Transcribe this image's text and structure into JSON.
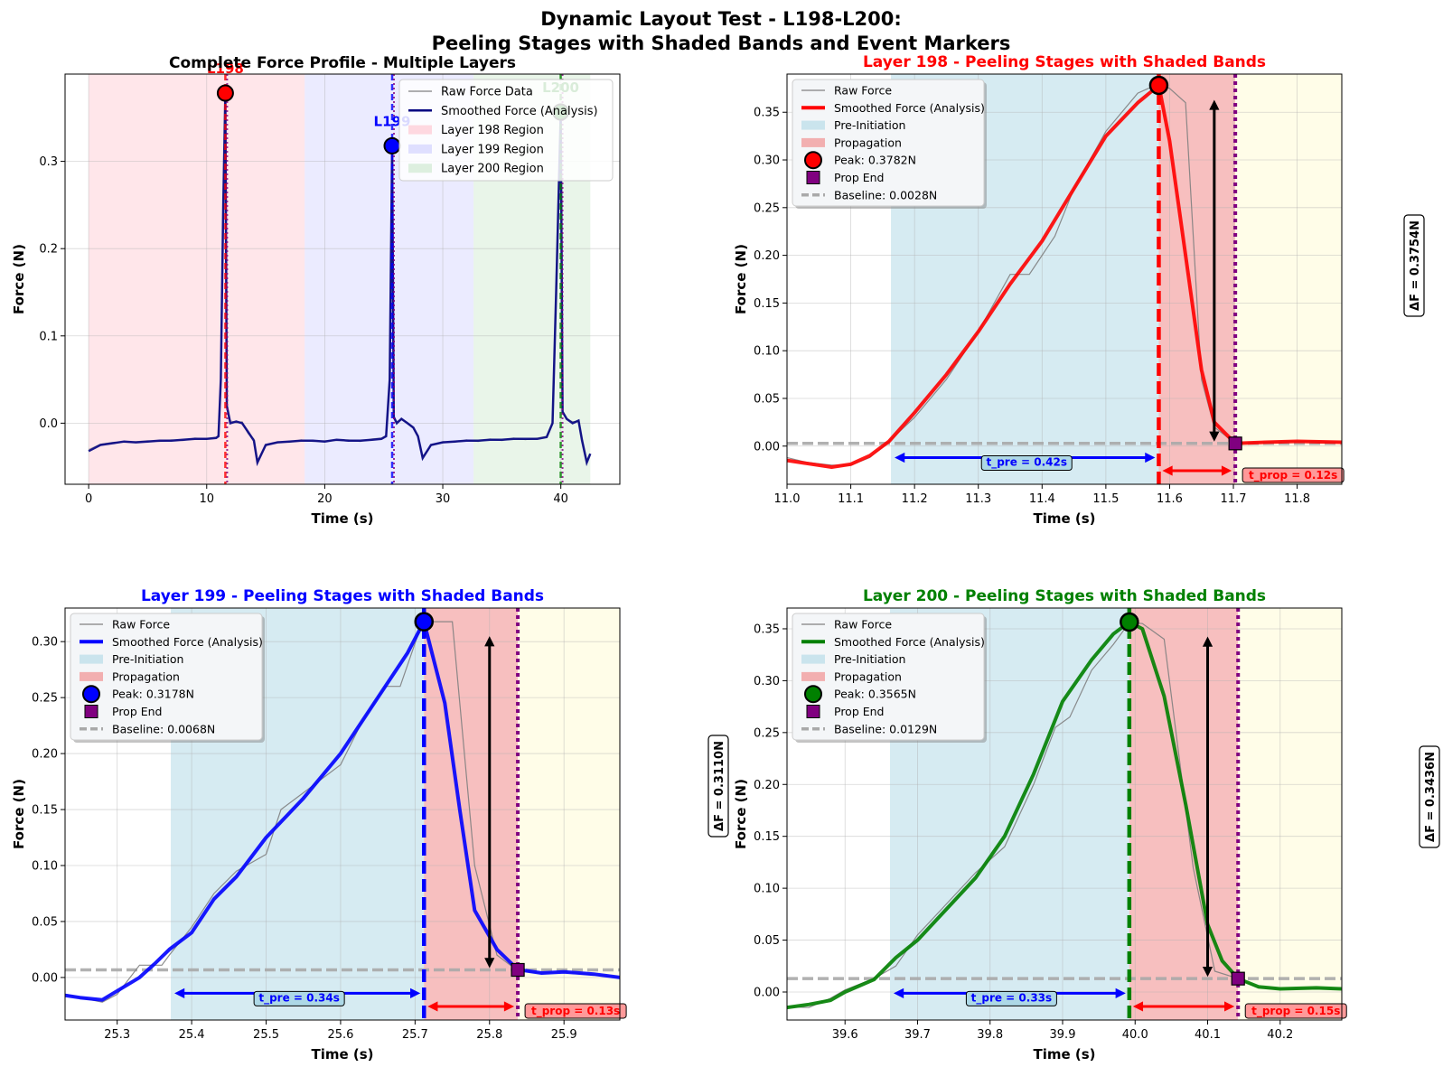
{
  "suptitle": [
    "Dynamic Layout Test - L198-L200:",
    "Peeling Stages with Shaded Bands and Event Markers"
  ],
  "colors": {
    "l198": "#ff0000",
    "l199": "#0000ff",
    "l200": "#008000",
    "raw": "#808080",
    "pre": "#add8e6",
    "prop": "#f08080",
    "post": "#fffde6",
    "purple": "#800080",
    "baseline": "#a9a9a9"
  },
  "chart_data": [
    {
      "type": "line",
      "title": "Complete Force Profile - Multiple Layers",
      "xlabel": "Time (s)",
      "ylabel": "Force (N)",
      "xlim": [
        -2,
        45
      ],
      "ylim": [
        -0.07,
        0.4
      ],
      "xticks": [
        "0",
        "10",
        "20",
        "30",
        "40"
      ],
      "yticks": [
        "0.0",
        "0.1",
        "0.2",
        "0.3"
      ],
      "grid": true,
      "legend_position": "top-right",
      "legend": [
        "Raw Force Data",
        "Smoothed Force (Analysis)",
        "Layer 198 Region",
        "Layer 199 Region",
        "Layer 200 Region"
      ],
      "regions": [
        {
          "name": "Layer 198 Region",
          "x": [
            0,
            18.3
          ]
        },
        {
          "name": "Layer 199 Region",
          "x": [
            18.3,
            32.6
          ]
        },
        {
          "name": "Layer 200 Region",
          "x": [
            32.6,
            42.5
          ]
        }
      ],
      "peaks": [
        {
          "label": "L198",
          "x": 11.58,
          "y": 0.3782
        },
        {
          "label": "L199",
          "x": 25.71,
          "y": 0.3178
        },
        {
          "label": "L200",
          "x": 39.99,
          "y": 0.3565
        }
      ],
      "series": [
        {
          "name": "Smoothed Force (Analysis)",
          "x": [
            0,
            1,
            2,
            3,
            4,
            5,
            6,
            7,
            8,
            9,
            10,
            10.8,
            11.0,
            11.2,
            11.4,
            11.58,
            11.7,
            12,
            12.5,
            13,
            13.5,
            14,
            14.3,
            15,
            16,
            17,
            18,
            19,
            20,
            21,
            22,
            23,
            24,
            24.8,
            25.2,
            25.5,
            25.71,
            25.85,
            26.1,
            26.5,
            27,
            27.5,
            27.9,
            28.3,
            29,
            30,
            31,
            32,
            33,
            34,
            35,
            36,
            37,
            38,
            38.8,
            39.3,
            39.6,
            39.99,
            40.15,
            40.5,
            41,
            41.5,
            41.8,
            42.2,
            42.5
          ],
          "y": [
            -0.032,
            -0.025,
            -0.023,
            -0.021,
            -0.022,
            -0.021,
            -0.02,
            -0.02,
            -0.019,
            -0.018,
            -0.018,
            -0.017,
            -0.015,
            0.05,
            0.25,
            0.3782,
            0.02,
            0.0,
            0.002,
            0.0,
            -0.01,
            -0.02,
            -0.045,
            -0.025,
            -0.022,
            -0.021,
            -0.02,
            -0.02,
            -0.021,
            -0.019,
            -0.02,
            -0.02,
            -0.019,
            -0.018,
            -0.015,
            0.05,
            0.3178,
            0.007,
            0.0,
            0.005,
            0.0,
            -0.005,
            -0.015,
            -0.04,
            -0.025,
            -0.022,
            -0.021,
            -0.02,
            -0.02,
            -0.019,
            -0.019,
            -0.018,
            -0.018,
            -0.018,
            -0.016,
            0.0,
            0.15,
            0.3565,
            0.013,
            0.005,
            0.0,
            0.003,
            -0.02,
            -0.045,
            -0.035
          ]
        },
        {
          "name": "Raw Force Data",
          "x": [
            0,
            1,
            2,
            3,
            4,
            5,
            6,
            7,
            8,
            9,
            10,
            10.8,
            11.0,
            11.2,
            11.4,
            11.58,
            11.7,
            12,
            12.5,
            13,
            13.5,
            14,
            14.3,
            15,
            16,
            17,
            18,
            19,
            20,
            21,
            22,
            23,
            24,
            24.8,
            25.2,
            25.5,
            25.71,
            25.85,
            26.1,
            26.5,
            27,
            27.5,
            27.9,
            28.3,
            29,
            30,
            31,
            32,
            33,
            34,
            35,
            36,
            37,
            38,
            38.8,
            39.3,
            39.6,
            39.99,
            40.15,
            40.5,
            41,
            41.5,
            41.8,
            42.2,
            42.5
          ],
          "y": [
            -0.03,
            -0.024,
            -0.022,
            -0.022,
            -0.021,
            -0.02,
            -0.021,
            -0.019,
            -0.02,
            -0.017,
            -0.018,
            -0.016,
            -0.014,
            0.05,
            0.26,
            0.3782,
            0.02,
            0.003,
            0.0,
            0.002,
            -0.012,
            -0.018,
            -0.043,
            -0.026,
            -0.021,
            -0.022,
            -0.019,
            -0.021,
            -0.02,
            -0.02,
            -0.019,
            -0.021,
            -0.018,
            -0.017,
            -0.014,
            0.05,
            0.3178,
            0.006,
            0.002,
            0.004,
            0.001,
            -0.006,
            -0.014,
            -0.038,
            -0.026,
            -0.021,
            -0.022,
            -0.019,
            -0.021,
            -0.018,
            -0.02,
            -0.017,
            -0.019,
            -0.017,
            -0.015,
            0.0,
            0.15,
            0.3565,
            0.013,
            0.004,
            0.002,
            0.002,
            -0.018,
            -0.043,
            -0.036
          ]
        }
      ]
    },
    {
      "type": "line",
      "title": "Layer 198 - Peeling Stages with Shaded Bands",
      "xlabel": "Time (s)",
      "ylabel": "Force (N)",
      "xlim": [
        11.0,
        11.87
      ],
      "ylim": [
        -0.04,
        0.39
      ],
      "xticks": [
        [
          "11.0",
          11.0
        ],
        [
          "11.1",
          11.1
        ],
        [
          "11.2",
          11.2
        ],
        [
          "11.3",
          11.3
        ],
        [
          "11.4",
          11.4
        ],
        [
          "11.5",
          11.5
        ],
        [
          "11.6",
          11.6
        ],
        [
          "11.7",
          11.7
        ],
        [
          "11.8",
          11.8
        ]
      ],
      "yticks": [
        [
          "0.00",
          0
        ],
        [
          "0.05",
          0.05
        ],
        [
          "0.10",
          0.1
        ],
        [
          "0.15",
          0.15
        ],
        [
          "0.20",
          0.2
        ],
        [
          "0.25",
          0.25
        ],
        [
          "0.30",
          0.3
        ],
        [
          "0.35",
          0.35
        ]
      ],
      "grid": true,
      "legend_position": "top-left",
      "legend": [
        "Raw Force",
        "Smoothed Force (Analysis)",
        "Pre-Initiation",
        "Propagation",
        "Peak: 0.3782N",
        "Prop End",
        "Baseline: 0.0028N"
      ],
      "baseline": 0.0028,
      "pre": [
        11.163,
        11.583
      ],
      "prop": [
        11.583,
        11.703
      ],
      "post_end": 11.87,
      "peak": {
        "x": 11.583,
        "y": 0.3782
      },
      "prop_end": {
        "x": 11.703,
        "y": 0.0028
      },
      "delta_label": "ΔF = 0.3754N",
      "delta_side": "right",
      "delta_arrow_x": 11.67,
      "t_pre_label": "t_pre = 0.42s",
      "t_prop_label": "t_prop = 0.12s",
      "series": [
        {
          "name": "Smoothed Force (Analysis)",
          "x": [
            11.0,
            11.03,
            11.07,
            11.1,
            11.13,
            11.16,
            11.2,
            11.25,
            11.3,
            11.35,
            11.4,
            11.45,
            11.5,
            11.55,
            11.583,
            11.6,
            11.625,
            11.65,
            11.67,
            11.703,
            11.75,
            11.8,
            11.87
          ],
          "y": [
            -0.015,
            -0.018,
            -0.022,
            -0.019,
            -0.01,
            0.005,
            0.035,
            0.075,
            0.12,
            0.17,
            0.215,
            0.27,
            0.325,
            0.36,
            0.3782,
            0.32,
            0.2,
            0.08,
            0.025,
            0.0028,
            0.004,
            0.005,
            0.004
          ]
        },
        {
          "name": "Raw Force",
          "x": [
            11.0,
            11.03,
            11.07,
            11.1,
            11.13,
            11.16,
            11.2,
            11.25,
            11.3,
            11.35,
            11.38,
            11.42,
            11.45,
            11.5,
            11.55,
            11.583,
            11.6,
            11.625,
            11.65,
            11.67,
            11.703,
            11.75,
            11.8,
            11.87
          ],
          "y": [
            -0.012,
            -0.017,
            -0.02,
            -0.02,
            -0.012,
            0.005,
            0.03,
            0.07,
            0.12,
            0.18,
            0.18,
            0.22,
            0.27,
            0.33,
            0.37,
            0.38,
            0.375,
            0.36,
            0.07,
            0.02,
            0.003,
            0.004,
            0.005,
            0.004
          ]
        }
      ]
    },
    {
      "type": "line",
      "title": "Layer 199 - Peeling Stages with Shaded Bands",
      "xlabel": "Time (s)",
      "ylabel": "Force (N)",
      "xlim": [
        25.23,
        25.975
      ],
      "ylim": [
        -0.038,
        0.33
      ],
      "xticks": [
        [
          "25.3",
          25.3
        ],
        [
          "25.4",
          25.4
        ],
        [
          "25.5",
          25.5
        ],
        [
          "25.6",
          25.6
        ],
        [
          "25.7",
          25.7
        ],
        [
          "25.8",
          25.8
        ],
        [
          "25.9",
          25.9
        ]
      ],
      "yticks": [
        [
          "0.00",
          0
        ],
        [
          "0.05",
          0.05
        ],
        [
          "0.10",
          0.1
        ],
        [
          "0.15",
          0.15
        ],
        [
          "0.20",
          0.2
        ],
        [
          "0.25",
          0.25
        ],
        [
          "0.30",
          0.3
        ]
      ],
      "grid": true,
      "legend_position": "top-left",
      "legend": [
        "Raw Force",
        "Smoothed Force (Analysis)",
        "Pre-Initiation",
        "Propagation",
        "Peak: 0.3178N",
        "Prop End",
        "Baseline: 0.0068N"
      ],
      "baseline": 0.0068,
      "pre": [
        25.372,
        25.712
      ],
      "prop": [
        25.712,
        25.838
      ],
      "post_end": 25.975,
      "peak": {
        "x": 25.712,
        "y": 0.3178
      },
      "prop_end": {
        "x": 25.838,
        "y": 0.0068
      },
      "delta_label": "ΔF = 0.3110N",
      "delta_side": "right",
      "delta_arrow_x": 25.8,
      "t_pre_label": "t_pre = 0.34s",
      "t_prop_label": "t_prop = 0.13s",
      "series": [
        {
          "name": "Smoothed Force (Analysis)",
          "x": [
            25.23,
            25.25,
            25.28,
            25.3,
            25.33,
            25.35,
            25.37,
            25.4,
            25.43,
            25.46,
            25.5,
            25.55,
            25.6,
            25.63,
            25.66,
            25.69,
            25.712,
            25.74,
            25.76,
            25.78,
            25.81,
            25.838,
            25.87,
            25.9,
            25.94,
            25.975
          ],
          "y": [
            -0.016,
            -0.018,
            -0.02,
            -0.012,
            0.0,
            0.012,
            0.025,
            0.04,
            0.07,
            0.09,
            0.125,
            0.16,
            0.2,
            0.23,
            0.26,
            0.29,
            0.3178,
            0.245,
            0.15,
            0.06,
            0.025,
            0.007,
            0.004,
            0.005,
            0.003,
            0.0
          ]
        },
        {
          "name": "Raw Force",
          "x": [
            25.23,
            25.25,
            25.28,
            25.3,
            25.33,
            25.36,
            25.37,
            25.4,
            25.43,
            25.46,
            25.5,
            25.52,
            25.55,
            25.6,
            25.63,
            25.66,
            25.68,
            25.71,
            25.75,
            25.78,
            25.81,
            25.838,
            25.87,
            25.9,
            25.975
          ],
          "y": [
            -0.015,
            -0.018,
            -0.022,
            -0.015,
            0.011,
            0.011,
            0.02,
            0.045,
            0.075,
            0.095,
            0.11,
            0.15,
            0.165,
            0.19,
            0.23,
            0.26,
            0.26,
            0.3178,
            0.3178,
            0.1,
            0.02,
            0.006,
            0.004,
            0.005,
            0.0
          ]
        }
      ]
    },
    {
      "type": "line",
      "title": "Layer 200 - Peeling Stages with Shaded Bands",
      "xlabel": "Time (s)",
      "ylabel": "Force (N)",
      "xlim": [
        39.52,
        40.285
      ],
      "ylim": [
        -0.027,
        0.37
      ],
      "xticks": [
        [
          "39.6",
          39.6
        ],
        [
          "39.7",
          39.7
        ],
        [
          "39.8",
          39.8
        ],
        [
          "39.9",
          39.9
        ],
        [
          "40.0",
          40.0
        ],
        [
          "40.1",
          40.1
        ],
        [
          "40.2",
          40.2
        ]
      ],
      "yticks": [
        [
          "0.00",
          0
        ],
        [
          "0.05",
          0.05
        ],
        [
          "0.10",
          0.1
        ],
        [
          "0.15",
          0.15
        ],
        [
          "0.20",
          0.2
        ],
        [
          "0.25",
          0.25
        ],
        [
          "0.30",
          0.3
        ],
        [
          "0.35",
          0.35
        ]
      ],
      "grid": true,
      "legend_position": "top-left",
      "legend": [
        "Raw Force",
        "Smoothed Force (Analysis)",
        "Pre-Initiation",
        "Propagation",
        "Peak: 0.3565N",
        "Prop End",
        "Baseline: 0.0129N"
      ],
      "baseline": 0.0129,
      "pre": [
        39.662,
        39.992
      ],
      "prop": [
        39.992,
        40.142
      ],
      "post_end": 40.285,
      "peak": {
        "x": 39.992,
        "y": 0.3565
      },
      "prop_end": {
        "x": 40.142,
        "y": 0.0129
      },
      "delta_label": "ΔF = 0.3436N",
      "delta_side": "right",
      "delta_arrow_x": 40.1,
      "t_pre_label": "t_pre = 0.33s",
      "t_prop_label": "t_prop = 0.15s",
      "series": [
        {
          "name": "Smoothed Force (Analysis)",
          "x": [
            39.52,
            39.55,
            39.58,
            39.6,
            39.64,
            39.67,
            39.7,
            39.74,
            39.78,
            39.82,
            39.86,
            39.9,
            39.94,
            39.97,
            39.992,
            40.01,
            40.04,
            40.07,
            40.1,
            40.12,
            40.142,
            40.17,
            40.2,
            40.25,
            40.285
          ],
          "y": [
            -0.015,
            -0.012,
            -0.008,
            0.0,
            0.012,
            0.033,
            0.05,
            0.08,
            0.11,
            0.15,
            0.21,
            0.28,
            0.32,
            0.345,
            0.3565,
            0.35,
            0.285,
            0.18,
            0.065,
            0.03,
            0.0129,
            0.005,
            0.003,
            0.004,
            0.003
          ]
        },
        {
          "name": "Raw Force",
          "x": [
            39.52,
            39.55,
            39.58,
            39.6,
            39.64,
            39.67,
            39.7,
            39.74,
            39.78,
            39.82,
            39.86,
            39.89,
            39.91,
            39.94,
            39.97,
            39.992,
            40.01,
            40.04,
            40.08,
            40.11,
            40.142,
            40.17,
            40.2,
            40.285
          ],
          "y": [
            -0.014,
            -0.015,
            -0.006,
            0.002,
            0.013,
            0.025,
            0.055,
            0.085,
            0.115,
            0.14,
            0.2,
            0.255,
            0.265,
            0.31,
            0.335,
            0.356,
            0.355,
            0.34,
            0.12,
            0.02,
            0.013,
            0.004,
            0.003,
            0.003
          ]
        }
      ]
    }
  ]
}
